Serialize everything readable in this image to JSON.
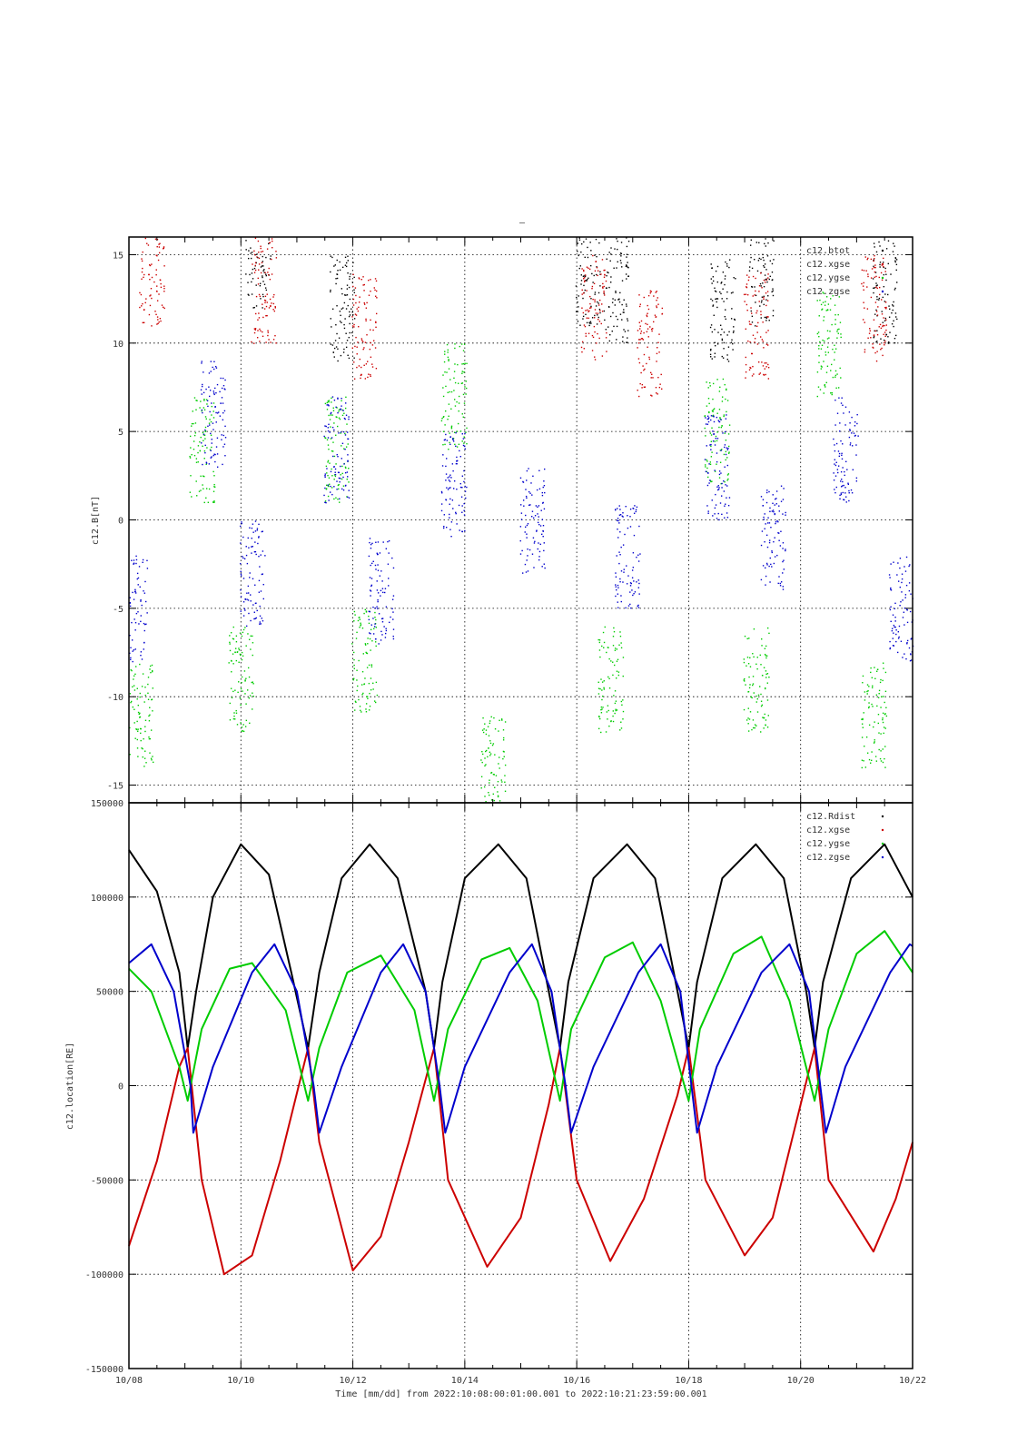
{
  "colors": {
    "rdist": "#000000",
    "xgse": "#cc0000",
    "ygse": "#00cc00",
    "zgse": "#0000cc"
  },
  "header_mark": "–",
  "footer": {
    "x_caption": "Time [mm/dd]  from 2022:10:08:00:01:00.001  to  2022:10:21:23:59:00.001",
    "x_tick_labels": [
      "10/08",
      "10/10",
      "10/12",
      "10/14",
      "10/16",
      "10/18",
      "10/20",
      "10/22"
    ]
  },
  "chart_data": [
    {
      "type": "scatter",
      "ylabel": "c12.B[nT]",
      "ylim": [
        -16,
        16
      ],
      "xlim_days": [
        0,
        14
      ],
      "y_ticks": [
        15,
        10,
        5,
        0,
        -5,
        -10,
        -15
      ],
      "y_tick_labels": [
        "15",
        "10",
        "5",
        "0",
        "-5",
        "-10",
        "-15"
      ],
      "grid": true,
      "legend": "top-right",
      "series": [
        {
          "name": "c12.btot",
          "color": "#000000",
          "note_values": [
            {
              "t": 2.3,
              "v": 15
            },
            {
              "t": 3.8,
              "v": 12
            },
            {
              "t": 8.2,
              "v": 14
            },
            {
              "t": 8.7,
              "v": 13
            },
            {
              "t": 10.6,
              "v": 12
            },
            {
              "t": 11.3,
              "v": 14
            },
            {
              "t": 13.5,
              "v": 13
            }
          ]
        },
        {
          "name": "c12.xgse",
          "color": "#cc0000",
          "note_values": [
            {
              "t": 0.4,
              "v": 14
            },
            {
              "t": 2.4,
              "v": 13
            },
            {
              "t": 4.2,
              "v": 11
            },
            {
              "t": 8.3,
              "v": 12
            },
            {
              "t": 9.3,
              "v": 10
            },
            {
              "t": 11.2,
              "v": 11
            },
            {
              "t": 13.3,
              "v": 12
            }
          ]
        },
        {
          "name": "c12.ygse",
          "color": "#00cc00",
          "note_values": [
            {
              "t": 0.2,
              "v": -11
            },
            {
              "t": 1.3,
              "v": 4
            },
            {
              "t": 2.0,
              "v": -9
            },
            {
              "t": 3.7,
              "v": 4
            },
            {
              "t": 4.2,
              "v": -8
            },
            {
              "t": 5.8,
              "v": 7
            },
            {
              "t": 6.5,
              "v": -14
            },
            {
              "t": 8.6,
              "v": -9
            },
            {
              "t": 10.5,
              "v": 5
            },
            {
              "t": 11.2,
              "v": -9
            },
            {
              "t": 12.5,
              "v": 10
            },
            {
              "t": 13.3,
              "v": -11
            }
          ]
        },
        {
          "name": "c12.zgse",
          "color": "#0000cc",
          "note_values": [
            {
              "t": 0.1,
              "v": -5
            },
            {
              "t": 1.5,
              "v": 6
            },
            {
              "t": 2.2,
              "v": -3
            },
            {
              "t": 3.7,
              "v": 4
            },
            {
              "t": 4.5,
              "v": -4
            },
            {
              "t": 5.8,
              "v": 2
            },
            {
              "t": 7.2,
              "v": 0
            },
            {
              "t": 8.9,
              "v": -2
            },
            {
              "t": 10.5,
              "v": 3
            },
            {
              "t": 11.5,
              "v": -1
            },
            {
              "t": 12.8,
              "v": 4
            },
            {
              "t": 13.8,
              "v": -5
            }
          ]
        }
      ]
    },
    {
      "type": "line",
      "ylabel": "c12.location[RE]",
      "ylim": [
        -150000,
        150000
      ],
      "xlim_days": [
        0,
        14
      ],
      "y_ticks": [
        150000,
        100000,
        50000,
        0,
        -50000,
        -100000,
        -150000
      ],
      "y_tick_labels": [
        "150000",
        "100000",
        "50000",
        "0",
        "-50000",
        "-100000",
        "-150000"
      ],
      "grid": true,
      "legend": "top-right",
      "series": [
        {
          "name": "c12.Rdist",
          "color": "#000000",
          "values": [
            [
              0,
              125000
            ],
            [
              0.5,
              103000
            ],
            [
              0.9,
              60000
            ],
            [
              1.05,
              20000
            ],
            [
              1.2,
              50000
            ],
            [
              1.5,
              100000
            ],
            [
              2.0,
              128000
            ],
            [
              2.5,
              112000
            ],
            [
              2.9,
              60000
            ],
            [
              3.2,
              20000
            ],
            [
              3.4,
              60000
            ],
            [
              3.8,
              110000
            ],
            [
              4.3,
              128000
            ],
            [
              4.8,
              110000
            ],
            [
              5.3,
              50000
            ],
            [
              5.45,
              20000
            ],
            [
              5.6,
              55000
            ],
            [
              6.0,
              110000
            ],
            [
              6.6,
              128000
            ],
            [
              7.1,
              110000
            ],
            [
              7.5,
              50000
            ],
            [
              7.7,
              20000
            ],
            [
              7.85,
              55000
            ],
            [
              8.3,
              110000
            ],
            [
              8.9,
              128000
            ],
            [
              9.4,
              110000
            ],
            [
              9.8,
              50000
            ],
            [
              10.0,
              20000
            ],
            [
              10.15,
              55000
            ],
            [
              10.6,
              110000
            ],
            [
              11.2,
              128000
            ],
            [
              11.7,
              110000
            ],
            [
              12.1,
              50000
            ],
            [
              12.25,
              20000
            ],
            [
              12.4,
              55000
            ],
            [
              12.9,
              110000
            ],
            [
              13.5,
              128000
            ],
            [
              14.0,
              100000
            ]
          ]
        },
        {
          "name": "c12.xgse",
          "color": "#cc0000",
          "values": [
            [
              0,
              -85000
            ],
            [
              0.5,
              -40000
            ],
            [
              0.9,
              10000
            ],
            [
              1.05,
              20000
            ],
            [
              1.3,
              -50000
            ],
            [
              1.7,
              -100000
            ],
            [
              2.2,
              -90000
            ],
            [
              2.7,
              -40000
            ],
            [
              3.2,
              20000
            ],
            [
              3.4,
              -30000
            ],
            [
              4.0,
              -98000
            ],
            [
              4.5,
              -80000
            ],
            [
              5.0,
              -30000
            ],
            [
              5.45,
              20000
            ],
            [
              5.7,
              -50000
            ],
            [
              6.4,
              -96000
            ],
            [
              7.0,
              -70000
            ],
            [
              7.5,
              -10000
            ],
            [
              7.7,
              20000
            ],
            [
              8.0,
              -50000
            ],
            [
              8.6,
              -93000
            ],
            [
              9.2,
              -60000
            ],
            [
              9.8,
              -5000
            ],
            [
              10.0,
              20000
            ],
            [
              10.3,
              -50000
            ],
            [
              11.0,
              -90000
            ],
            [
              11.5,
              -70000
            ],
            [
              12.0,
              -10000
            ],
            [
              12.25,
              20000
            ],
            [
              12.5,
              -50000
            ],
            [
              13.3,
              -88000
            ],
            [
              13.7,
              -60000
            ],
            [
              14.0,
              -30000
            ]
          ]
        },
        {
          "name": "c12.ygse",
          "color": "#00cc00",
          "values": [
            [
              0,
              62000
            ],
            [
              0.4,
              50000
            ],
            [
              0.9,
              10000
            ],
            [
              1.05,
              -8000
            ],
            [
              1.3,
              30000
            ],
            [
              1.8,
              62000
            ],
            [
              2.2,
              65000
            ],
            [
              2.8,
              40000
            ],
            [
              3.2,
              -8000
            ],
            [
              3.4,
              20000
            ],
            [
              3.9,
              60000
            ],
            [
              4.5,
              69000
            ],
            [
              5.1,
              40000
            ],
            [
              5.45,
              -8000
            ],
            [
              5.7,
              30000
            ],
            [
              6.3,
              67000
            ],
            [
              6.8,
              73000
            ],
            [
              7.3,
              45000
            ],
            [
              7.7,
              -8000
            ],
            [
              7.9,
              30000
            ],
            [
              8.5,
              68000
            ],
            [
              9.0,
              76000
            ],
            [
              9.5,
              45000
            ],
            [
              10.0,
              -8000
            ],
            [
              10.2,
              30000
            ],
            [
              10.8,
              70000
            ],
            [
              11.3,
              79000
            ],
            [
              11.8,
              45000
            ],
            [
              12.25,
              -8000
            ],
            [
              12.5,
              30000
            ],
            [
              13.0,
              70000
            ],
            [
              13.5,
              82000
            ],
            [
              14.0,
              60000
            ]
          ]
        },
        {
          "name": "c12.zgse",
          "color": "#0000cc",
          "values": [
            [
              0,
              65000
            ],
            [
              0.4,
              75000
            ],
            [
              0.8,
              50000
            ],
            [
              1.1,
              0
            ],
            [
              1.15,
              -25000
            ],
            [
              1.5,
              10000
            ],
            [
              2.2,
              60000
            ],
            [
              2.6,
              75000
            ],
            [
              3.0,
              50000
            ],
            [
              3.3,
              0
            ],
            [
              3.4,
              -25000
            ],
            [
              3.8,
              10000
            ],
            [
              4.5,
              60000
            ],
            [
              4.9,
              75000
            ],
            [
              5.3,
              50000
            ],
            [
              5.55,
              0
            ],
            [
              5.65,
              -25000
            ],
            [
              6.0,
              10000
            ],
            [
              6.8,
              60000
            ],
            [
              7.2,
              75000
            ],
            [
              7.55,
              50000
            ],
            [
              7.8,
              0
            ],
            [
              7.9,
              -25000
            ],
            [
              8.3,
              10000
            ],
            [
              9.1,
              60000
            ],
            [
              9.5,
              75000
            ],
            [
              9.85,
              50000
            ],
            [
              10.05,
              0
            ],
            [
              10.15,
              -25000
            ],
            [
              10.5,
              10000
            ],
            [
              11.3,
              60000
            ],
            [
              11.8,
              75000
            ],
            [
              12.15,
              50000
            ],
            [
              12.35,
              0
            ],
            [
              12.45,
              -25000
            ],
            [
              12.8,
              10000
            ],
            [
              13.6,
              60000
            ],
            [
              13.95,
              75000
            ],
            [
              14.0,
              74000
            ]
          ]
        }
      ]
    }
  ]
}
